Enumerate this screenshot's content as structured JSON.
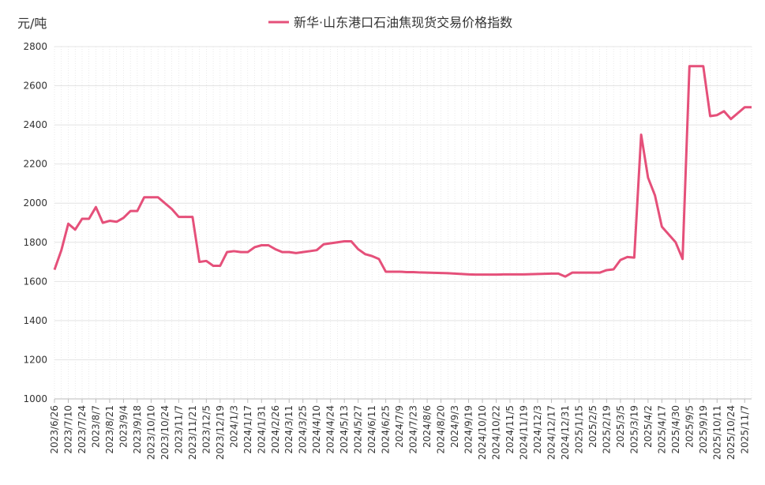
{
  "chart_data": {
    "type": "line",
    "y_label": "元/吨",
    "categories": [
      "2023/6/26",
      null,
      "2023/7/10",
      null,
      "2023/7/24",
      null,
      "2023/8/7",
      null,
      "2023/8/21",
      null,
      "2023/9/4",
      null,
      "2023/9/18",
      null,
      "2023/10/10",
      null,
      "2023/10/24",
      null,
      "2023/11/7",
      null,
      "2023/11/21",
      null,
      "2023/12/5",
      null,
      "2023/12/19",
      null,
      "2024/1/3",
      null,
      "2024/1/17",
      null,
      "2024/1/31",
      null,
      "2024/2/26",
      null,
      "2024/3/11",
      null,
      "2024/3/25",
      null,
      "2024/4/10",
      null,
      "2024/4/24",
      null,
      "2024/5/13",
      null,
      "2024/5/27",
      null,
      "2024/6/11",
      null,
      "2024/6/25",
      null,
      "2024/7/9",
      null,
      "2024/7/23",
      null,
      "2024/8/6",
      null,
      "2024/8/20",
      null,
      "2024/9/3",
      null,
      "2024/9/19",
      null,
      "2024/10/10",
      null,
      "2024/10/22",
      null,
      "2024/11/5",
      null,
      "2024/11/19",
      null,
      "2024/12/3",
      null,
      "2024/12/17",
      null,
      "2024/12/31",
      null,
      "2025/1/15",
      null,
      "2025/2/5",
      null,
      "2025/2/19",
      null,
      "2025/3/5",
      null,
      "2025/3/19",
      null,
      "2025/4/2",
      null,
      "2025/4/17",
      null,
      "2025/4/30",
      null,
      "2025/9/5",
      null,
      "2025/9/19",
      null,
      "2025/10/11",
      null,
      "2025/10/24",
      null,
      "2025/11/7",
      null
    ],
    "series": [
      {
        "name": "新华·山东港口石油焦现货交易价格指数",
        "color": "#e5507a",
        "values": [
          1660,
          1760,
          1895,
          1865,
          1920,
          1920,
          1980,
          1900,
          1910,
          1905,
          1925,
          1960,
          1960,
          2030,
          2030,
          2030,
          2000,
          1970,
          1930,
          1930,
          1930,
          1700,
          1705,
          1680,
          1680,
          1750,
          1755,
          1750,
          1750,
          1775,
          1785,
          1785,
          1765,
          1750,
          1750,
          1745,
          1750,
          1755,
          1760,
          1790,
          1795,
          1800,
          1805,
          1805,
          1765,
          1740,
          1730,
          1715,
          1650,
          1650,
          1650,
          1648,
          1648,
          1646,
          1645,
          1644,
          1643,
          1642,
          1640,
          1638,
          1636,
          1635,
          1635,
          1635,
          1635,
          1636,
          1636,
          1636,
          1636,
          1637,
          1638,
          1639,
          1640,
          1640,
          1625,
          1645,
          1645,
          1645,
          1645,
          1645,
          1658,
          1662,
          1710,
          1725,
          1722,
          2350,
          2130,
          2040,
          1880,
          1840,
          1800,
          1715,
          2700,
          2700,
          2700,
          2445,
          2450,
          2470,
          2430,
          2460,
          2490,
          2490
        ]
      }
    ],
    "ylim": [
      1000,
      2800
    ],
    "yticks": [
      1000,
      1200,
      1400,
      1600,
      1800,
      2000,
      2200,
      2400,
      2600,
      2800
    ],
    "grid": true
  }
}
